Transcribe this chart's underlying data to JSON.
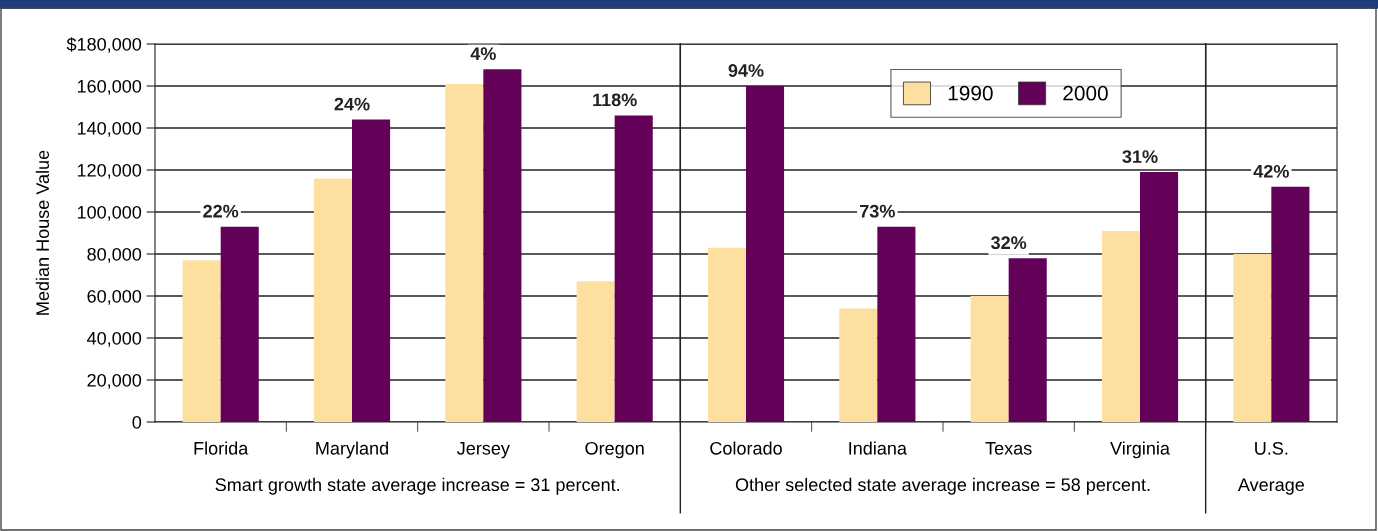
{
  "chart_data": {
    "type": "bar",
    "ylabel": "Median House Value",
    "categories": [
      "Florida",
      "Maryland",
      "Jersey",
      "Oregon",
      "Colorado",
      "Indiana",
      "Texas",
      "Virginia",
      "U.S."
    ],
    "series": [
      {
        "name": "1990",
        "color": "#fde09f",
        "values": [
          77000,
          116000,
          161000,
          67000,
          83000,
          54000,
          60000,
          91000,
          80000
        ]
      },
      {
        "name": "2000",
        "color": "#630058",
        "values": [
          93000,
          144000,
          168000,
          146000,
          160000,
          93000,
          78000,
          119000,
          112000
        ]
      }
    ],
    "ylim": [
      0,
      180000
    ],
    "yticks": [
      {
        "value": 0,
        "label": "0"
      },
      {
        "value": 20000,
        "label": "20,000"
      },
      {
        "value": 40000,
        "label": "40,000"
      },
      {
        "value": 60000,
        "label": "60,000"
      },
      {
        "value": 80000,
        "label": "80,000"
      },
      {
        "value": 100000,
        "label": "100,000"
      },
      {
        "value": 120000,
        "label": "120,000"
      },
      {
        "value": 140000,
        "label": "140,000"
      },
      {
        "value": 160000,
        "label": "160,000"
      },
      {
        "value": 180000,
        "label": "$180,000"
      }
    ],
    "grid": "y",
    "legend": "top",
    "annotations": [
      {
        "text": "22%",
        "x": "Florida",
        "y": 93000
      },
      {
        "text": "24%",
        "x": "Maryland",
        "y": 144000
      },
      {
        "text": "4%",
        "x": "Jersey",
        "y": 168000
      },
      {
        "text": "118%",
        "x": "Oregon",
        "y": 146000
      },
      {
        "text": "94%",
        "x": "Colorado",
        "y": 160000
      },
      {
        "text": "73%",
        "x": "Indiana",
        "y": 93000
      },
      {
        "text": "32%",
        "x": "Texas",
        "y": 78000
      },
      {
        "text": "31%",
        "x": "Virginia",
        "y": 119000
      },
      {
        "text": "42%",
        "x": "U.S.",
        "y": 112000
      },
      "Smart growth state average increase = 31 percent.",
      "Other selected state average increase = 58 percent.",
      "Average"
    ]
  }
}
